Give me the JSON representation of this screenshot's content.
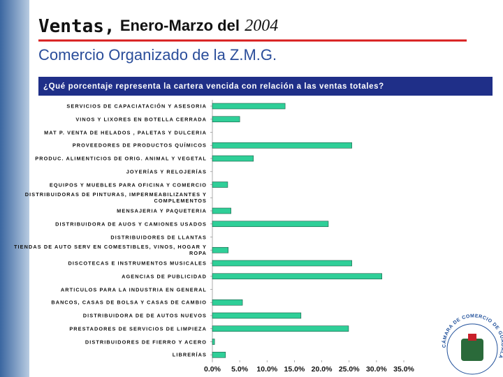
{
  "header": {
    "title_parts": [
      "Ventas,",
      "Enero-Marzo del",
      "2004"
    ],
    "subtitle": "Comercio Organizado de la Z.M.G.",
    "question": "¿Qué porcentaje representa la cartera vencida con relación a las ventas totales?"
  },
  "logo": {
    "text": "CÁMARA DE COMERCIO DE GUADALAJARA"
  },
  "chart_data": {
    "type": "hbar",
    "color": "#2fcf98",
    "categories": [
      "SERVICIOS DE CAPACIATACIÓN Y ASESORIA",
      "VINOS Y LIXORES EN BOTELLA CERRADA",
      "MAT P. VENTA DE HELADOS , PALETAS Y DULCERIA",
      "PROVEEDORES DE PRODUCTOS QUÍMICOS",
      "PRODUC. ALIMENTICIOS DE ORIG. ANIMAL Y VEGETAL",
      "JOYERÍAS Y RELOJERÍAS",
      "EQUIPOS Y MUEBLES PARA OFICINA Y COMERCIO",
      "DISTRIBUIDORAS DE PINTURAS, IMPERMEABILIZANTES Y COMPLEMENTOS",
      "MENSAJERIA Y PAQUETERIA",
      "DISTRIBUIDORA DE AUOS Y CAMIONES USADOS",
      "DISTRIBUIDORES DE LLANTAS",
      "TIENDAS DE AUTO SERV EN COMESTIBLES, VINOS, HOGAR Y ROPA",
      "DISCOTECAS E INSTRUMENTOS MUSICALES",
      "AGENCIAS DE PUBLICIDAD",
      "ARTICULOS PARA LA INDUSTRIA EN GENERAL",
      "BANCOS, CASAS DE BOLSA Y CASAS DE CAMBIO",
      "DISTRIBUIDORA DE DE AUTOS NUEVOS",
      "PRESTADORES DE SERVICIOS DE LIMPIEZA",
      "DISTRIBUIDORES DE FIERRO Y ACERO",
      "LIBRERÍAS"
    ],
    "values": [
      13.3,
      5.0,
      0,
      25.5,
      7.5,
      0,
      2.8,
      0,
      3.4,
      21.2,
      0,
      2.9,
      25.5,
      31.0,
      0,
      5.5,
      16.2,
      24.9,
      0.4,
      2.4
    ],
    "xlim": [
      0,
      35
    ],
    "xticks": [
      {
        "value": 0,
        "label": "0.0%"
      },
      {
        "value": 5,
        "label": "5.0%"
      },
      {
        "value": 10,
        "label": "10.0%"
      },
      {
        "value": 15,
        "label": "15.0%"
      },
      {
        "value": 20,
        "label": "20.0%"
      },
      {
        "value": 25,
        "label": "25.0%"
      },
      {
        "value": 30,
        "label": "30.0%"
      },
      {
        "value": 35,
        "label": "35.0%"
      }
    ]
  }
}
